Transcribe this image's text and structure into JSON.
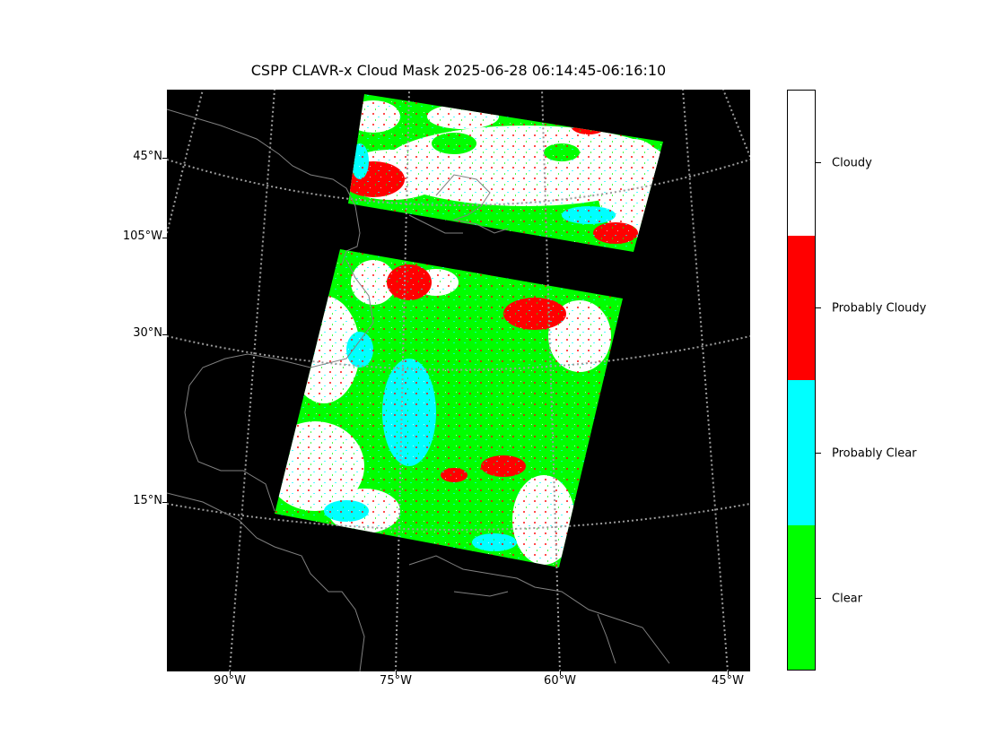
{
  "title": "CSPP CLAVR-x Cloud Mask 2025-06-28 06:14:45-06:16:10",
  "map": {
    "lat_labels": [
      "45°N",
      "105°W",
      "30°N",
      "15°N"
    ],
    "lon_labels": [
      "90°W",
      "75°W",
      "60°W",
      "45°W"
    ],
    "background_color": "#000000",
    "coastline_color": "#808080",
    "graticule_color": "#9a9a9a"
  },
  "legend": {
    "categories": [
      {
        "label": "Cloudy",
        "color": "#ffffff"
      },
      {
        "label": "Probably Cloudy",
        "color": "#ff0000"
      },
      {
        "label": "Probably Clear",
        "color": "#00ffff"
      },
      {
        "label": "Clear",
        "color": "#00ff00"
      }
    ]
  }
}
